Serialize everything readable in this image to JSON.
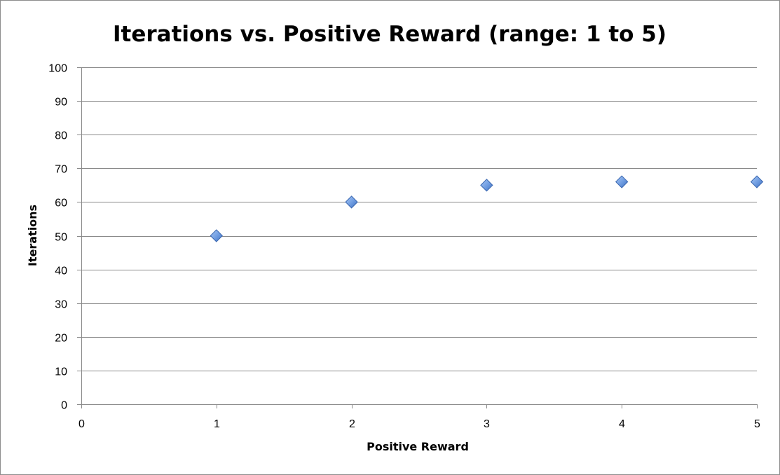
{
  "chart_data": {
    "type": "scatter",
    "title": "Iterations vs. Positive Reward (range: 1 to 5)",
    "xlabel": "Positive Reward",
    "ylabel": "Iterations",
    "xlim": [
      0,
      5
    ],
    "ylim": [
      0,
      100
    ],
    "x_ticks": [
      0,
      1,
      2,
      3,
      4,
      5
    ],
    "y_ticks": [
      0,
      10,
      20,
      30,
      40,
      50,
      60,
      70,
      80,
      90,
      100
    ],
    "grid": "horizontal",
    "legend": "none",
    "marker": "diamond",
    "marker_color": "#6d9be0",
    "series": [
      {
        "x": [
          1,
          2,
          3,
          4,
          5
        ],
        "y": [
          50,
          60,
          65,
          66,
          66
        ]
      }
    ]
  }
}
